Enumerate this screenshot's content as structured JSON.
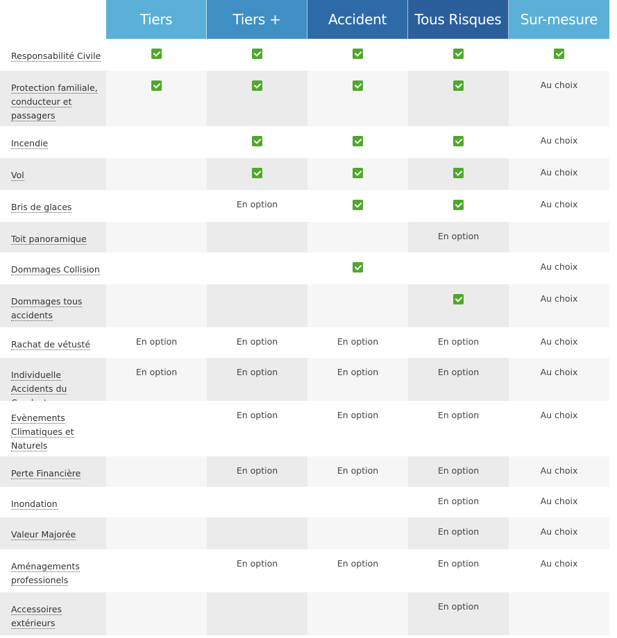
{
  "columns": [
    {
      "label": "Tiers",
      "color": "#5ab0d6"
    },
    {
      "label": "Tiers +",
      "color": "#3f8fc4"
    },
    {
      "label": "Accident",
      "color": "#2e6aa8"
    },
    {
      "label": "Tous Risques",
      "color": "#2a5f9c"
    },
    {
      "label": "Sur-mesure",
      "color": "#5ab0d6"
    }
  ],
  "icons": {
    "check": "checkmark-icon",
    "check_color": "#4fa82b"
  },
  "rows": [
    {
      "label": "Responsabilité Civile",
      "cells": [
        "check",
        "check",
        "check",
        "check",
        "check"
      ]
    },
    {
      "label": "Protection familiale, conducteur et passagers",
      "cells": [
        "check",
        "check",
        "check",
        "check",
        "Au choix"
      ]
    },
    {
      "label": "Incendie",
      "cells": [
        "",
        "check",
        "check",
        "check",
        "Au choix"
      ]
    },
    {
      "label": "Vol",
      "cells": [
        "",
        "check",
        "check",
        "check",
        "Au choix"
      ]
    },
    {
      "label": "Bris de glaces",
      "cells": [
        "",
        "En option",
        "check",
        "check",
        "Au choix"
      ]
    },
    {
      "label": "Toit panoramique",
      "cells": [
        "",
        "",
        "",
        "En option",
        ""
      ]
    },
    {
      "label": "Dommages Collision",
      "cells": [
        "",
        "",
        "check",
        "",
        "Au choix"
      ]
    },
    {
      "label": "Dommages tous accidents",
      "cells": [
        "",
        "",
        "",
        "check",
        "Au choix"
      ]
    },
    {
      "label": "Rachat de vétusté",
      "cells": [
        "En option",
        "En option",
        "En option",
        "En option",
        "Au choix"
      ]
    },
    {
      "label": "Individuelle Accidents du Conducteur",
      "cells": [
        "En option",
        "En option",
        "En option",
        "En option",
        "Au choix"
      ]
    },
    {
      "label": "Evènements Climatiques et Naturels",
      "cells": [
        "",
        "En option",
        "En option",
        "En option",
        "Au choix"
      ]
    },
    {
      "label": "Perte Financière",
      "cells": [
        "",
        "En option",
        "En option",
        "En option",
        "Au choix"
      ]
    },
    {
      "label": "Inondation",
      "cells": [
        "",
        "",
        "",
        "En option",
        "Au choix"
      ]
    },
    {
      "label": "Valeur Majorée",
      "cells": [
        "",
        "",
        "",
        "En option",
        "Au choix"
      ]
    },
    {
      "label": "Aménagements professionels",
      "cells": [
        "",
        "En option",
        "En option",
        "En option",
        "Au choix"
      ]
    },
    {
      "label": "Accessoires extérieurs",
      "cells": [
        "",
        "",
        "",
        "En option",
        ""
      ]
    }
  ]
}
